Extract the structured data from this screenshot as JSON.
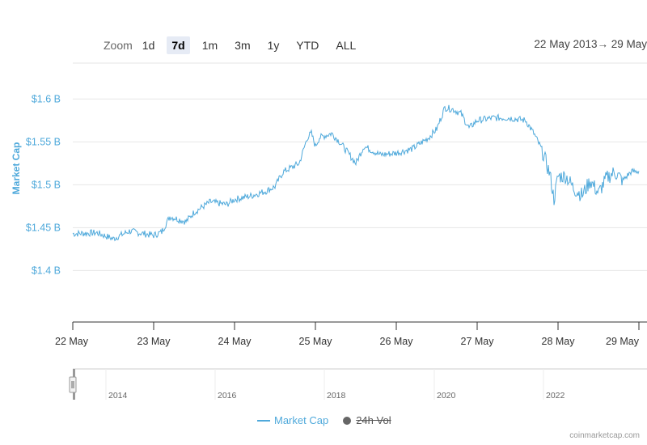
{
  "zoom": {
    "label": "Zoom",
    "buttons": [
      "1d",
      "7d",
      "1m",
      "3m",
      "1y",
      "YTD",
      "ALL"
    ],
    "active": "7d"
  },
  "date_range": "22 May 2013→  29 May",
  "colors": {
    "series": "#4fa9db",
    "grid": "#e6e6e6",
    "axis": "#333333",
    "navigator": "#cccccc"
  },
  "chart_data": {
    "type": "line",
    "title": "",
    "xlabel": "",
    "ylabel": "Market Cap",
    "x_ticks": [
      "22 May",
      "23 May",
      "24 May",
      "25 May",
      "26 May",
      "27 May",
      "28 May",
      "29 May"
    ],
    "y_ticks": [
      "$1.4 B",
      "$1.45 B",
      "$1.5 B",
      "$1.55 B",
      "$1.6 B"
    ],
    "y_tick_values": [
      1.4,
      1.45,
      1.5,
      1.55,
      1.6
    ],
    "ylim": [
      1.34,
      1.64
    ],
    "xlim": [
      0,
      7
    ],
    "series": [
      {
        "name": "Market Cap",
        "unit": "billion USD",
        "x": [
          0,
          0.3,
          0.5,
          0.7,
          1.0,
          1.1,
          1.2,
          1.4,
          1.5,
          1.7,
          1.9,
          2.0,
          2.2,
          2.4,
          2.5,
          2.6,
          2.8,
          2.9,
          2.95,
          3.0,
          3.05,
          3.2,
          3.3,
          3.5,
          3.6,
          3.8,
          4.0,
          4.2,
          4.4,
          4.5,
          4.6,
          4.7,
          4.8,
          4.9,
          5.0,
          5.2,
          5.4,
          5.6,
          5.7,
          5.8,
          5.9,
          5.95,
          6.0,
          6.1,
          6.2,
          6.3,
          6.4,
          6.5,
          6.6,
          6.7,
          6.8,
          6.9,
          7.0
        ],
        "values": [
          1.443,
          1.444,
          1.437,
          1.446,
          1.441,
          1.445,
          1.463,
          1.457,
          1.468,
          1.48,
          1.477,
          1.483,
          1.487,
          1.493,
          1.498,
          1.515,
          1.525,
          1.555,
          1.56,
          1.545,
          1.555,
          1.56,
          1.55,
          1.525,
          1.545,
          1.535,
          1.537,
          1.542,
          1.555,
          1.565,
          1.59,
          1.588,
          1.583,
          1.566,
          1.575,
          1.578,
          1.578,
          1.575,
          1.56,
          1.541,
          1.512,
          1.483,
          1.51,
          1.51,
          1.495,
          1.488,
          1.505,
          1.49,
          1.508,
          1.515,
          1.505,
          1.515,
          1.516
        ]
      }
    ],
    "navigator_ticks": [
      "2014",
      "2016",
      "2018",
      "2020",
      "2022"
    ],
    "legend": [
      {
        "name": "Market Cap",
        "visible": true
      },
      {
        "name": "24h Vol",
        "visible": false
      }
    ]
  },
  "credits": "coinmarketcap.com"
}
